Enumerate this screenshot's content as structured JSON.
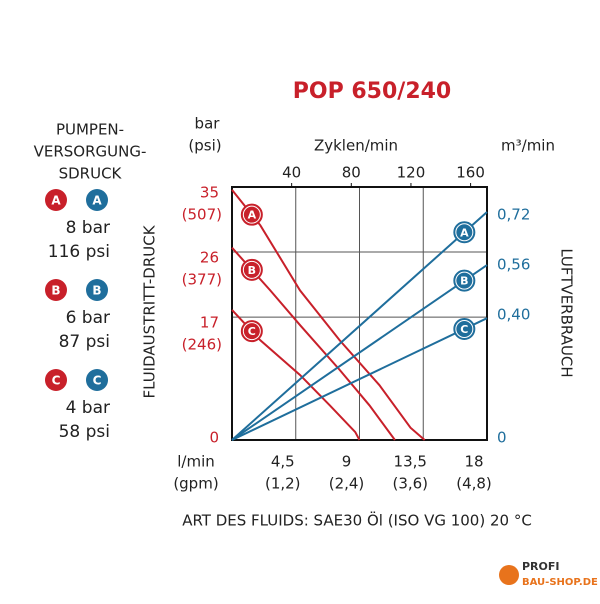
{
  "chart_data": {
    "type": "line",
    "title": "POP 650/240",
    "y_unit": "bar",
    "y_unit2": "(psi)",
    "y_title": "FLUIDAUSTRITT-DRUCK",
    "y2_unit": "m³/min",
    "y2_title": "LUFTVERBRAUCH",
    "x_unit": "l/min",
    "x_unit2": "(gpm)",
    "x2_label": "Zyklen/min",
    "footer": "ART DES FLUIDS: SAE30 Öl (ISO VG 100) 20 °C",
    "xlim": [
      0,
      18
    ],
    "xticks": [
      {
        "value": 4.5,
        "label": "4,5"
      },
      9,
      {
        "value": 13.5,
        "label": "13,5"
      },
      18
    ],
    "xtick_gpm_labels": [
      "(1,2)",
      "(2,4)",
      "(3,6)",
      "(4,8)"
    ],
    "x2lim": [
      0,
      171
    ],
    "x2ticks": [
      40,
      80,
      120,
      160
    ],
    "ylim": [
      0,
      35
    ],
    "yticks": [
      0,
      17,
      26,
      35
    ],
    "ytick_psi_labels": [
      null,
      "(246)",
      "(377)",
      "(507)"
    ],
    "y2lim": [
      0,
      0.81
    ],
    "y2ticks": [
      0,
      {
        "value": 0.4,
        "label": "0,40"
      },
      {
        "value": 0.56,
        "label": "0,56"
      },
      {
        "value": 0.72,
        "label": "0,72"
      }
    ],
    "grid": true,
    "series": [
      {
        "name": "A",
        "color": "#c8202a",
        "x": [
          0,
          2.0,
          4.8,
          7.6,
          10.4,
          12.6,
          13.6
        ],
        "values": [
          34.6,
          29.7,
          20.7,
          13.8,
          7.6,
          1.7,
          0
        ]
      },
      {
        "name": "B",
        "color": "#c8202a",
        "x": [
          0,
          2.7,
          4.8,
          7.6,
          9.7,
          11.5
        ],
        "values": [
          26.6,
          20.7,
          15.9,
          9.7,
          4.8,
          0
        ]
      },
      {
        "name": "C",
        "color": "#c8202a",
        "x": [
          0,
          2.0,
          4.8,
          6.9,
          8.7,
          9.0
        ],
        "values": [
          18.0,
          13.8,
          9.0,
          4.8,
          1.1,
          0
        ]
      },
      {
        "name": "A",
        "color": "#1f6e9c",
        "axis": "y2",
        "x": [
          0,
          18
        ],
        "values": [
          0,
          0.73
        ]
      },
      {
        "name": "B",
        "color": "#1f6e9c",
        "axis": "y2",
        "x": [
          0,
          18
        ],
        "values": [
          0,
          0.56
        ]
      },
      {
        "name": "C",
        "color": "#1f6e9c",
        "axis": "y2",
        "x": [
          0,
          18
        ],
        "values": [
          0,
          0.39
        ]
      }
    ],
    "supply_title": [
      "PUMPEN-",
      "VERSORGUNG-",
      "SDRUCK"
    ],
    "supply": [
      {
        "bar": "8 bar",
        "psi": "116 psi"
      },
      {
        "bar": "6 bar",
        "psi": "87 psi"
      },
      {
        "bar": "4 bar",
        "psi": "58 psi"
      }
    ]
  },
  "watermark": {
    "line1": "PROFI",
    "line2": "BAU-SHOP.DE"
  }
}
